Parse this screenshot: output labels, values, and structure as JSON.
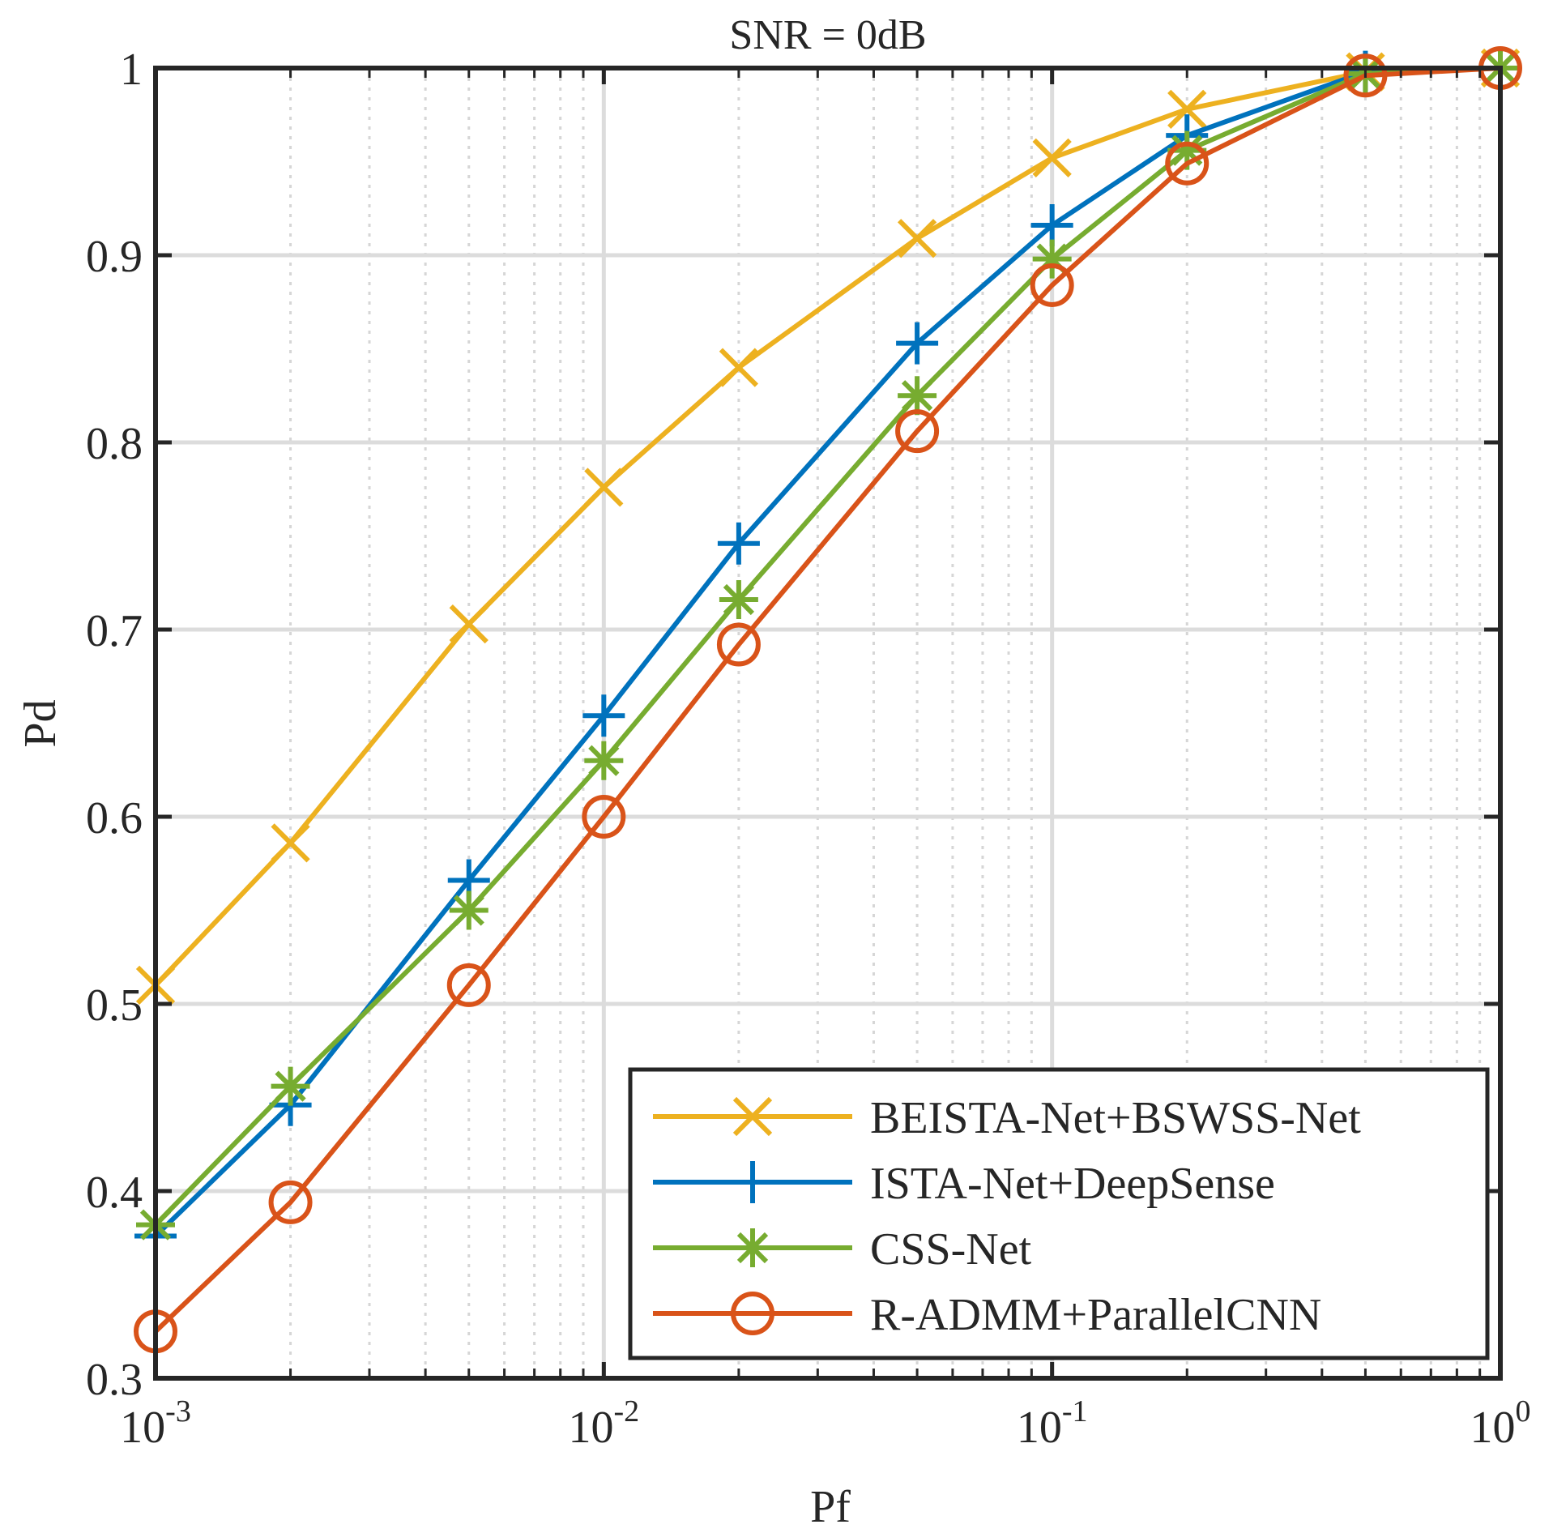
{
  "chart_data": {
    "type": "line",
    "title": "SNR = 0dB",
    "xlabel": "Pf",
    "ylabel": "Pd",
    "xscale": "log",
    "xlim": [
      0.001,
      1
    ],
    "ylim": [
      0.3,
      1
    ],
    "grid": true,
    "minor_grid": true,
    "legend_position": "bottom-right",
    "x": [
      0.001,
      0.002,
      0.005,
      0.01,
      0.02,
      0.05,
      0.1,
      0.2,
      0.5,
      1
    ],
    "x_ticks": [
      {
        "value": 0.001,
        "base": "10",
        "exp": "-3"
      },
      {
        "value": 0.01,
        "base": "10",
        "exp": "-2"
      },
      {
        "value": 0.1,
        "base": "10",
        "exp": "-1"
      },
      {
        "value": 1,
        "base": "10",
        "exp": "0"
      }
    ],
    "y_ticks": [
      {
        "value": 0.3,
        "label": "0.3"
      },
      {
        "value": 0.4,
        "label": "0.4"
      },
      {
        "value": 0.5,
        "label": "0.5"
      },
      {
        "value": 0.6,
        "label": "0.6"
      },
      {
        "value": 0.7,
        "label": "0.7"
      },
      {
        "value": 0.8,
        "label": "0.8"
      },
      {
        "value": 0.9,
        "label": "0.9"
      },
      {
        "value": 1,
        "label": "1"
      }
    ],
    "series": [
      {
        "name": "BEISTA-Net+BSWSS-Net",
        "color": "#EDB120",
        "marker": "x-mark",
        "values": [
          0.51,
          0.586,
          0.703,
          0.776,
          0.84,
          0.909,
          0.952,
          0.978,
          0.998,
          1.0
        ]
      },
      {
        "name": "ISTA-Net+DeepSense",
        "color": "#0072BD",
        "marker": "plus",
        "values": [
          0.376,
          0.446,
          0.566,
          0.654,
          0.746,
          0.853,
          0.916,
          0.964,
          0.998,
          1.0
        ]
      },
      {
        "name": "CSS-Net",
        "color": "#77AC30",
        "marker": "asterisk",
        "values": [
          0.382,
          0.456,
          0.55,
          0.63,
          0.716,
          0.825,
          0.898,
          0.956,
          0.997,
          1.0
        ]
      },
      {
        "name": "R-ADMM+ParallelCNN",
        "color": "#D95319",
        "marker": "circle",
        "values": [
          0.325,
          0.394,
          0.51,
          0.6,
          0.692,
          0.806,
          0.884,
          0.949,
          0.996,
          1.0
        ]
      }
    ]
  }
}
